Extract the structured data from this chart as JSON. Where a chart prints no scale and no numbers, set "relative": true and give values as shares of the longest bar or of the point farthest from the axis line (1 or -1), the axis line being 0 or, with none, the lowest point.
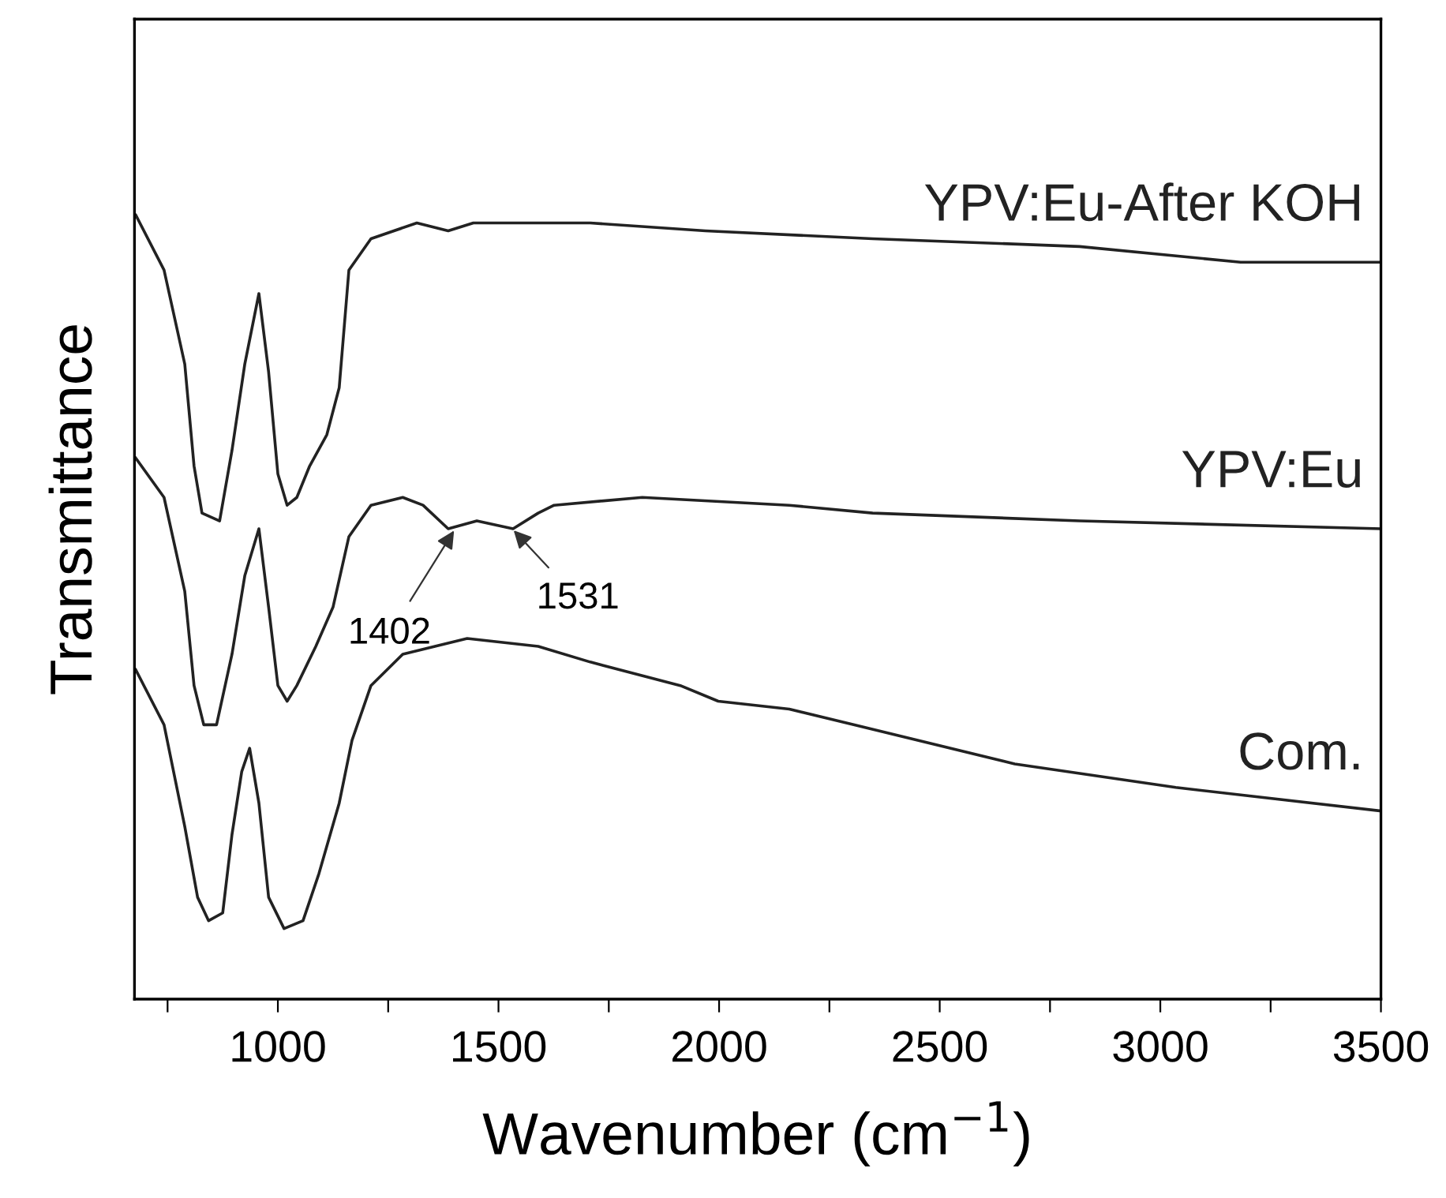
{
  "chart_data": {
    "type": "line",
    "relative": true,
    "xlabel": "Wavenumber (cm$^{−1}$)",
    "ylabel": "Transmittance",
    "xlim": [
      675,
      3500
    ],
    "xticks": [
      {
        "value": 750,
        "label": null
      },
      1000,
      {
        "value": 1250,
        "label": null
      },
      1500,
      {
        "value": 1750,
        "label": null
      },
      2000,
      {
        "value": 2250,
        "label": null
      },
      2500,
      {
        "value": 2750,
        "label": null
      },
      3000,
      {
        "value": 3250,
        "label": null
      },
      3500
    ],
    "tick_labels": "x",
    "grid": false,
    "legend": false,
    "series": [
      {
        "name": "YPV:Eu-After KOH",
        "color": "#222222",
        "x": [
          678,
          742,
          789,
          810,
          828,
          868,
          896,
          925,
          957,
          979,
          1000,
          1021,
          1043,
          1072,
          1111,
          1139,
          1161,
          1211,
          1315,
          1386,
          1443,
          1590,
          1708,
          1969,
          2348,
          2817,
          3182,
          3500
        ],
        "values": [
          1.0,
          0.93,
          0.81,
          0.68,
          0.62,
          0.61,
          0.7,
          0.81,
          0.9,
          0.8,
          0.67,
          0.63,
          0.64,
          0.68,
          0.72,
          0.78,
          0.93,
          0.97,
          0.99,
          0.98,
          0.99,
          0.99,
          0.99,
          0.98,
          0.97,
          0.96,
          0.94,
          0.94
        ]
      },
      {
        "name": "YPV:Eu",
        "color": "#222222",
        "x": [
          678,
          742,
          789,
          810,
          832,
          861,
          896,
          925,
          957,
          979,
          1000,
          1021,
          1043,
          1086,
          1125,
          1161,
          1211,
          1283,
          1329,
          1386,
          1451,
          1533,
          1590,
          1626,
          1826,
          2159,
          2348,
          2817,
          3500
        ],
        "values": [
          0.69,
          0.64,
          0.52,
          0.4,
          0.35,
          0.35,
          0.44,
          0.54,
          0.6,
          0.5,
          0.4,
          0.38,
          0.4,
          0.45,
          0.5,
          0.59,
          0.63,
          0.64,
          0.63,
          0.6,
          0.61,
          0.6,
          0.62,
          0.63,
          0.64,
          0.63,
          0.62,
          0.61,
          0.6
        ]
      },
      {
        "name": "Com.",
        "color": "#222222",
        "x": [
          678,
          742,
          789,
          818,
          843,
          875,
          896,
          918,
          936,
          957,
          979,
          1014,
          1057,
          1093,
          1139,
          1168,
          1211,
          1283,
          1429,
          1590,
          1708,
          1912,
          1998,
          2159,
          2305,
          2670,
          3035,
          3500
        ],
        "values": [
          0.42,
          0.35,
          0.22,
          0.13,
          0.1,
          0.11,
          0.21,
          0.29,
          0.32,
          0.25,
          0.13,
          0.09,
          0.1,
          0.16,
          0.25,
          0.33,
          0.4,
          0.44,
          0.46,
          0.45,
          0.43,
          0.4,
          0.38,
          0.37,
          0.35,
          0.3,
          0.27,
          0.24
        ]
      }
    ],
    "annotations": [
      {
        "text": "1402",
        "x": 1402,
        "y": 0.6
      },
      {
        "text": "1531",
        "x": 1531,
        "y": 0.6
      }
    ]
  }
}
